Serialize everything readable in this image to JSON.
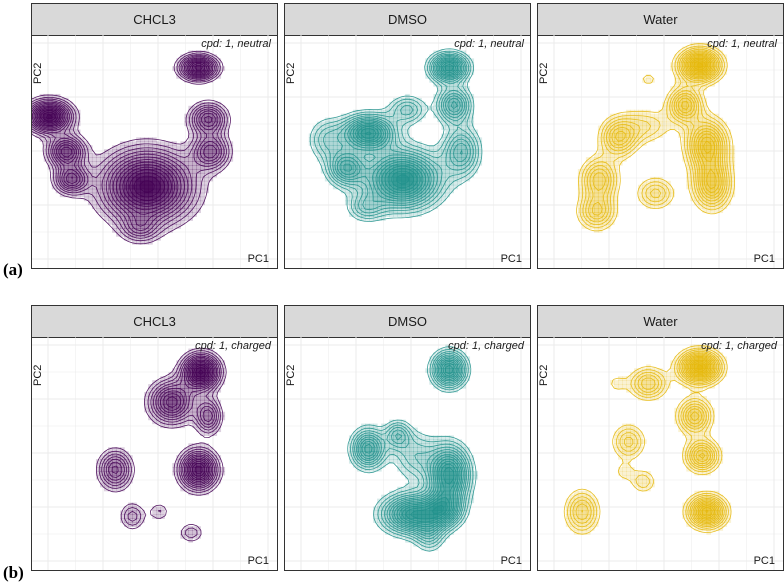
{
  "figure": {
    "row_labels": [
      "(a)",
      "(b)"
    ]
  },
  "colors": {
    "CHCL3": "#440154",
    "DMSO": "#21918c",
    "Water": "#e5b80b",
    "strip_bg": "#d9d9d9",
    "grid": "#ebebeb"
  },
  "chart_data": [
    {
      "type": "contour-density",
      "title": "CHCL3",
      "annotation": "cpd: 1, neutral",
      "xlabel": "PC1",
      "ylabel": "PC2",
      "row": "(a)",
      "color_key": "CHCL3",
      "xlim": [
        0,
        10
      ],
      "ylim": [
        0,
        10
      ],
      "density_peaks": [
        {
          "x": 6.8,
          "y": 8.6,
          "weight": 0.9,
          "sx": 0.5,
          "sy": 0.35
        },
        {
          "x": 0.7,
          "y": 6.5,
          "weight": 1.0,
          "sx": 0.6,
          "sy": 0.45
        },
        {
          "x": 1.4,
          "y": 5.0,
          "weight": 0.7,
          "sx": 0.5,
          "sy": 0.45
        },
        {
          "x": 1.6,
          "y": 3.8,
          "weight": 0.6,
          "sx": 0.45,
          "sy": 0.4
        },
        {
          "x": 4.7,
          "y": 3.5,
          "weight": 1.0,
          "sx": 1.2,
          "sy": 1.0
        },
        {
          "x": 7.2,
          "y": 6.4,
          "weight": 0.6,
          "sx": 0.5,
          "sy": 0.45
        },
        {
          "x": 7.3,
          "y": 5.0,
          "weight": 0.55,
          "sx": 0.5,
          "sy": 0.5
        },
        {
          "x": 4.4,
          "y": 1.7,
          "weight": 0.3,
          "sx": 0.5,
          "sy": 0.4
        }
      ]
    },
    {
      "type": "contour-density",
      "title": "DMSO",
      "annotation": "cpd: 1, neutral",
      "xlabel": "PC1",
      "ylabel": "PC2",
      "row": "(a)",
      "color_key": "DMSO",
      "xlim": [
        0,
        10
      ],
      "ylim": [
        0,
        10
      ],
      "density_peaks": [
        {
          "x": 6.7,
          "y": 8.6,
          "weight": 0.9,
          "sx": 0.5,
          "sy": 0.4
        },
        {
          "x": 3.4,
          "y": 5.8,
          "weight": 0.9,
          "sx": 0.7,
          "sy": 0.5
        },
        {
          "x": 2.5,
          "y": 4.3,
          "weight": 0.6,
          "sx": 0.5,
          "sy": 0.5
        },
        {
          "x": 4.8,
          "y": 3.8,
          "weight": 1.0,
          "sx": 1.0,
          "sy": 0.8
        },
        {
          "x": 6.9,
          "y": 7.0,
          "weight": 0.6,
          "sx": 0.45,
          "sy": 0.5
        },
        {
          "x": 7.2,
          "y": 5.0,
          "weight": 0.5,
          "sx": 0.5,
          "sy": 0.7
        },
        {
          "x": 5.0,
          "y": 6.8,
          "weight": 0.35,
          "sx": 0.5,
          "sy": 0.4
        },
        {
          "x": 1.7,
          "y": 5.5,
          "weight": 0.3,
          "sx": 0.5,
          "sy": 0.6
        },
        {
          "x": 3.3,
          "y": 2.6,
          "weight": 0.3,
          "sx": 0.5,
          "sy": 0.4
        }
      ]
    },
    {
      "type": "contour-density",
      "title": "Water",
      "annotation": "cpd: 1, neutral",
      "xlabel": "PC1",
      "ylabel": "PC2",
      "row": "(a)",
      "color_key": "Water",
      "xlim": [
        0,
        10
      ],
      "ylim": [
        0,
        10
      ],
      "density_peaks": [
        {
          "x": 6.6,
          "y": 8.7,
          "weight": 1.0,
          "sx": 0.55,
          "sy": 0.45
        },
        {
          "x": 6.0,
          "y": 7.0,
          "weight": 0.6,
          "sx": 0.45,
          "sy": 0.5
        },
        {
          "x": 6.9,
          "y": 5.3,
          "weight": 0.7,
          "sx": 0.55,
          "sy": 0.7
        },
        {
          "x": 7.1,
          "y": 3.6,
          "weight": 0.65,
          "sx": 0.5,
          "sy": 0.7
        },
        {
          "x": 3.3,
          "y": 5.6,
          "weight": 0.5,
          "sx": 0.5,
          "sy": 0.55
        },
        {
          "x": 2.5,
          "y": 3.8,
          "weight": 0.5,
          "sx": 0.5,
          "sy": 0.6
        },
        {
          "x": 2.4,
          "y": 2.4,
          "weight": 0.45,
          "sx": 0.5,
          "sy": 0.5
        },
        {
          "x": 4.8,
          "y": 3.2,
          "weight": 0.35,
          "sx": 0.5,
          "sy": 0.45
        },
        {
          "x": 4.4,
          "y": 6.1,
          "weight": 0.25,
          "sx": 0.7,
          "sy": 0.5
        },
        {
          "x": 4.5,
          "y": 8.1,
          "weight": 0.15,
          "sx": 0.35,
          "sy": 0.3
        }
      ]
    },
    {
      "type": "contour-density",
      "title": "CHCL3",
      "annotation": "cpd: 1, charged",
      "xlabel": "PC1",
      "ylabel": "PC2",
      "row": "(b)",
      "color_key": "CHCL3",
      "xlim": [
        0,
        10
      ],
      "ylim": [
        0,
        10
      ],
      "density_peaks": [
        {
          "x": 6.9,
          "y": 8.5,
          "weight": 1.0,
          "sx": 0.5,
          "sy": 0.5
        },
        {
          "x": 5.7,
          "y": 7.2,
          "weight": 0.7,
          "sx": 0.6,
          "sy": 0.6
        },
        {
          "x": 7.2,
          "y": 6.6,
          "weight": 0.5,
          "sx": 0.35,
          "sy": 0.5
        },
        {
          "x": 6.8,
          "y": 4.3,
          "weight": 0.9,
          "sx": 0.5,
          "sy": 0.55
        },
        {
          "x": 3.4,
          "y": 4.3,
          "weight": 0.55,
          "sx": 0.45,
          "sy": 0.55
        },
        {
          "x": 4.1,
          "y": 2.3,
          "weight": 0.3,
          "sx": 0.35,
          "sy": 0.4
        },
        {
          "x": 5.2,
          "y": 2.5,
          "weight": 0.2,
          "sx": 0.3,
          "sy": 0.3
        },
        {
          "x": 6.5,
          "y": 1.6,
          "weight": 0.25,
          "sx": 0.35,
          "sy": 0.3
        }
      ]
    },
    {
      "type": "contour-density",
      "title": "DMSO",
      "annotation": "cpd: 1, charged",
      "xlabel": "PC1",
      "ylabel": "PC2",
      "row": "(b)",
      "color_key": "DMSO",
      "xlim": [
        0,
        10
      ],
      "ylim": [
        0,
        10
      ],
      "density_peaks": [
        {
          "x": 6.7,
          "y": 8.6,
          "weight": 0.85,
          "sx": 0.45,
          "sy": 0.5
        },
        {
          "x": 3.4,
          "y": 5.2,
          "weight": 0.7,
          "sx": 0.45,
          "sy": 0.55
        },
        {
          "x": 4.6,
          "y": 5.8,
          "weight": 0.4,
          "sx": 0.35,
          "sy": 0.4
        },
        {
          "x": 6.7,
          "y": 4.1,
          "weight": 0.9,
          "sx": 0.55,
          "sy": 0.8
        },
        {
          "x": 5.2,
          "y": 2.4,
          "weight": 0.9,
          "sx": 0.8,
          "sy": 0.55
        },
        {
          "x": 6.5,
          "y": 2.6,
          "weight": 0.6,
          "sx": 0.5,
          "sy": 0.5
        },
        {
          "x": 5.9,
          "y": 1.5,
          "weight": 0.3,
          "sx": 0.4,
          "sy": 0.5
        },
        {
          "x": 5.3,
          "y": 4.9,
          "weight": 0.3,
          "sx": 0.6,
          "sy": 0.7
        }
      ]
    },
    {
      "type": "contour-density",
      "title": "Water",
      "annotation": "cpd: 1, charged",
      "xlabel": "PC1",
      "ylabel": "PC2",
      "row": "(b)",
      "color_key": "Water",
      "xlim": [
        0,
        10
      ],
      "ylim": [
        0,
        10
      ],
      "density_peaks": [
        {
          "x": 6.6,
          "y": 8.7,
          "weight": 1.0,
          "sx": 0.55,
          "sy": 0.45
        },
        {
          "x": 4.5,
          "y": 8.0,
          "weight": 0.45,
          "sx": 0.5,
          "sy": 0.45
        },
        {
          "x": 6.4,
          "y": 6.6,
          "weight": 0.55,
          "sx": 0.45,
          "sy": 0.5
        },
        {
          "x": 6.7,
          "y": 4.9,
          "weight": 0.6,
          "sx": 0.45,
          "sy": 0.45
        },
        {
          "x": 6.9,
          "y": 2.5,
          "weight": 0.85,
          "sx": 0.5,
          "sy": 0.45
        },
        {
          "x": 3.7,
          "y": 5.5,
          "weight": 0.35,
          "sx": 0.45,
          "sy": 0.5
        },
        {
          "x": 4.3,
          "y": 3.8,
          "weight": 0.25,
          "sx": 0.35,
          "sy": 0.35
        },
        {
          "x": 1.8,
          "y": 2.5,
          "weight": 0.45,
          "sx": 0.45,
          "sy": 0.6
        },
        {
          "x": 3.2,
          "y": 8.0,
          "weight": 0.15,
          "sx": 0.3,
          "sy": 0.3
        },
        {
          "x": 3.5,
          "y": 4.2,
          "weight": 0.15,
          "sx": 0.3,
          "sy": 0.3
        }
      ]
    }
  ]
}
